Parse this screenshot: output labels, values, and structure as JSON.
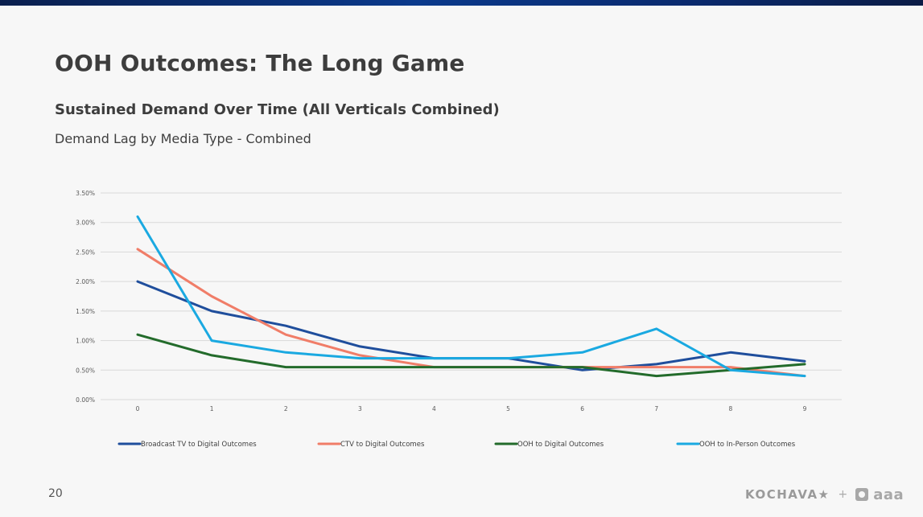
{
  "slide": {
    "title": "OOH Outcomes: The Long Game",
    "subtitle": "Sustained Demand Over Time (All Verticals Combined)",
    "chart_caption": "Demand Lag by Media Type - Combined",
    "page_number": "20",
    "logos": {
      "kochava": "KOCHAVA★",
      "plus": "+",
      "oaaa": "aaa"
    }
  },
  "colors": {
    "top_bar": "#0b3a8c",
    "broadcast_tv": "#1f4e9c",
    "ctv": "#f07d68",
    "ooh_digital": "#236b2b",
    "ooh_in_person": "#1aa9e1"
  },
  "chart_data": {
    "type": "line",
    "title": "",
    "xlabel": "",
    "ylabel": "",
    "x": [
      0,
      1,
      2,
      3,
      4,
      5,
      6,
      7,
      8,
      9
    ],
    "x_tick_labels": [
      "0",
      "1",
      "2",
      "3",
      "4",
      "5",
      "6",
      "7",
      "8",
      "9"
    ],
    "ylim": [
      0,
      0.035
    ],
    "y_ticks": [
      0,
      0.005,
      0.01,
      0.015,
      0.02,
      0.025,
      0.03,
      0.035
    ],
    "y_tick_labels": [
      "0.00%",
      "0.50%",
      "1.00%",
      "1.50%",
      "2.00%",
      "2.50%",
      "3.00%",
      "3.50%"
    ],
    "grid": true,
    "legend_position": "bottom",
    "series": [
      {
        "name": "Broadcast TV  to Digital Outcomes",
        "color": "#1f4e9c",
        "values": [
          0.02,
          0.015,
          0.0125,
          0.009,
          0.007,
          0.007,
          0.005,
          0.006,
          0.008,
          0.0065
        ]
      },
      {
        "name": "CTV to Digital Outcomes",
        "color": "#f07d68",
        "values": [
          0.0255,
          0.0175,
          0.011,
          0.0075,
          0.0055,
          0.0055,
          0.0055,
          0.0055,
          0.0055,
          0.004
        ]
      },
      {
        "name": "OOH to Digital Outcomes",
        "color": "#236b2b",
        "values": [
          0.011,
          0.0075,
          0.0055,
          0.0055,
          0.0055,
          0.0055,
          0.0055,
          0.004,
          0.005,
          0.006
        ]
      },
      {
        "name": "OOH to In-Person Outcomes",
        "color": "#1aa9e1",
        "values": [
          0.031,
          0.01,
          0.008,
          0.007,
          0.007,
          0.007,
          0.008,
          0.012,
          0.005,
          0.004
        ]
      }
    ]
  }
}
